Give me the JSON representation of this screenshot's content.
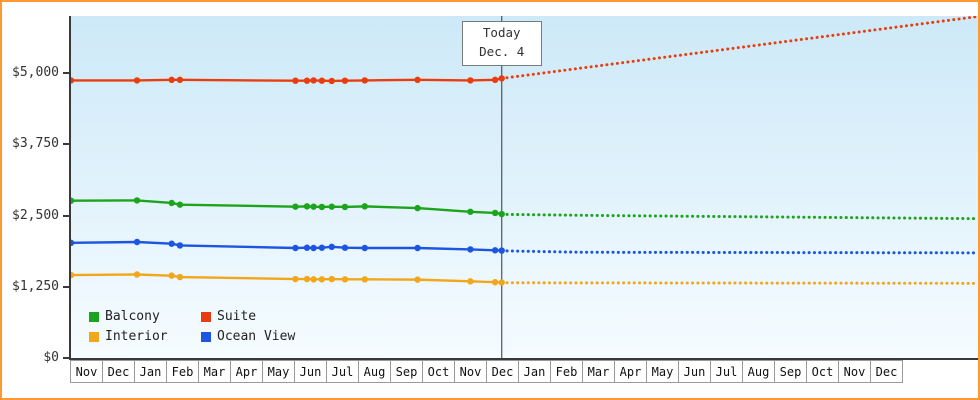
{
  "frame": {
    "border_color": "#ff9933"
  },
  "chart_data": {
    "type": "line",
    "title": "",
    "today": {
      "line1": "Today",
      "line2": "Dec. 4"
    },
    "today_x": 13.05,
    "today_line_color": "#4a5560",
    "x_months": [
      "Nov",
      "Dec",
      "Jan",
      "Feb",
      "Mar",
      "Apr",
      "May",
      "Jun",
      "Jul",
      "Aug",
      "Sep",
      "Oct",
      "Nov",
      "Dec",
      "Jan",
      "Feb",
      "Mar",
      "Apr",
      "May",
      "Jun",
      "Jul",
      "Aug",
      "Sep",
      "Oct",
      "Nov",
      "Dec"
    ],
    "y_ticks": [
      0,
      1250,
      2500,
      3750,
      5000
    ],
    "y_tick_labels": [
      "$0",
      "$1,250",
      "$2,500",
      "$3,750",
      "$5,000"
    ],
    "ylim": [
      0,
      6000
    ],
    "xlim": [
      0,
      27.48
    ],
    "series": [
      {
        "name": "Suite",
        "color": "#ea3d0f",
        "history": {
          "x": [
            0,
            2.0,
            3.05,
            3.3,
            6.8,
            7.15,
            7.35,
            7.6,
            7.9,
            8.3,
            8.9,
            10.5,
            12.1,
            12.85,
            13.05
          ],
          "y": [
            4870,
            4870,
            4880,
            4880,
            4865,
            4865,
            4870,
            4865,
            4860,
            4865,
            4870,
            4880,
            4870,
            4880,
            4905
          ]
        },
        "forecast": {
          "x": [
            13.05,
            27.4
          ],
          "y": [
            4905,
            5985
          ]
        }
      },
      {
        "name": "Balcony",
        "color": "#1ca41c",
        "history": {
          "x": [
            0,
            2.0,
            3.05,
            3.3,
            6.8,
            7.15,
            7.35,
            7.6,
            7.9,
            8.3,
            8.9,
            10.5,
            12.1,
            12.85,
            13.05
          ],
          "y": [
            2760,
            2765,
            2720,
            2690,
            2655,
            2660,
            2655,
            2650,
            2655,
            2650,
            2660,
            2630,
            2565,
            2545,
            2525
          ]
        },
        "forecast": {
          "x": [
            13.05,
            16.0,
            27.4
          ],
          "y": [
            2520,
            2500,
            2445
          ]
        }
      },
      {
        "name": "Ocean View",
        "color": "#1b55e2",
        "history": {
          "x": [
            0,
            2.0,
            3.05,
            3.3,
            6.8,
            7.15,
            7.35,
            7.6,
            7.9,
            8.3,
            8.9,
            10.5,
            12.1,
            12.85,
            13.05
          ],
          "y": [
            2020,
            2035,
            2005,
            1975,
            1930,
            1935,
            1930,
            1935,
            1950,
            1935,
            1930,
            1930,
            1905,
            1890,
            1885
          ]
        },
        "forecast": {
          "x": [
            13.05,
            15.5,
            27.4
          ],
          "y": [
            1880,
            1855,
            1845
          ]
        }
      },
      {
        "name": "Interior",
        "color": "#f2a71b",
        "history": {
          "x": [
            0,
            2.0,
            3.05,
            3.3,
            6.8,
            7.15,
            7.35,
            7.6,
            7.9,
            8.3,
            8.9,
            10.5,
            12.1,
            12.85,
            13.05
          ],
          "y": [
            1455,
            1465,
            1445,
            1420,
            1385,
            1385,
            1380,
            1380,
            1385,
            1380,
            1380,
            1375,
            1345,
            1330,
            1325
          ]
        },
        "forecast": {
          "x": [
            13.05,
            27.4
          ],
          "y": [
            1320,
            1310
          ]
        }
      }
    ],
    "legend_order": [
      "Balcony",
      "Suite",
      "Interior",
      "Ocean View"
    ],
    "legend_position": "bottom-left",
    "grid": false
  }
}
